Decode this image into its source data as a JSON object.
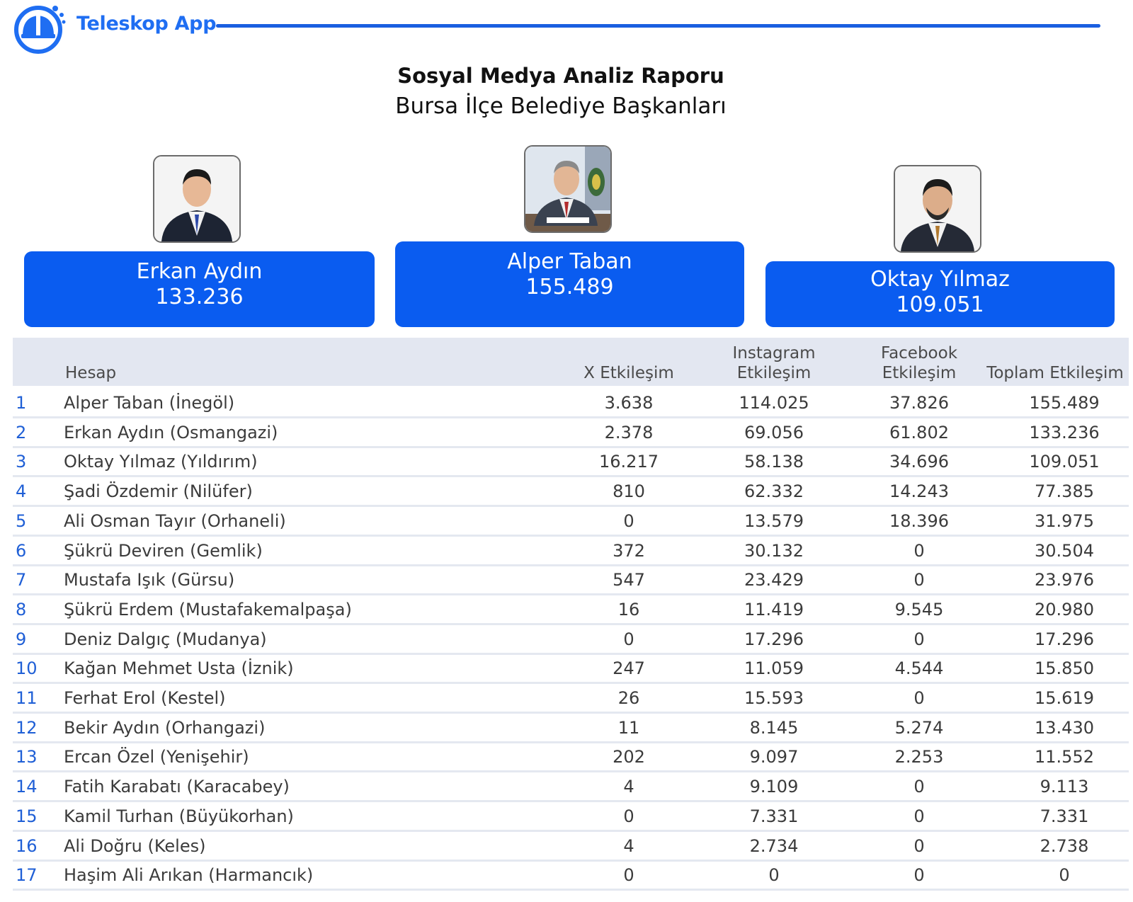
{
  "brand": {
    "name": "Teleskop App",
    "logo_icon": "telescope-dome-logo-icon",
    "color": "#1f6ef2"
  },
  "report": {
    "title": "Sosyal Medya Analiz Raporu",
    "subtitle": "Bursa İlçe Belediye Başkanları"
  },
  "podium": [
    {
      "name": "Erkan Aydın",
      "value": "133.236"
    },
    {
      "name": "Alper Taban",
      "value": "155.489"
    },
    {
      "name": "Oktay Yılmaz",
      "value": "109.051"
    }
  ],
  "table": {
    "headers": {
      "account": "Hesap",
      "x": "X Etkileşim",
      "instagram": [
        "Instagram",
        "Etkileşim"
      ],
      "facebook": [
        "Facebook",
        "Etkileşim"
      ],
      "total": "Toplam Etkileşim"
    },
    "rows": [
      {
        "rank": "1",
        "name": "Alper Taban (İnegöl)",
        "x": "3.638",
        "ig": "114.025",
        "fb": "37.826",
        "total": "155.489"
      },
      {
        "rank": "2",
        "name": "Erkan Aydın (Osmangazi)",
        "x": "2.378",
        "ig": "69.056",
        "fb": "61.802",
        "total": "133.236"
      },
      {
        "rank": "3",
        "name": "Oktay Yılmaz (Yıldırım)",
        "x": "16.217",
        "ig": "58.138",
        "fb": "34.696",
        "total": "109.051"
      },
      {
        "rank": "4",
        "name": "Şadi Özdemir (Nilüfer)",
        "x": "810",
        "ig": "62.332",
        "fb": "14.243",
        "total": "77.385"
      },
      {
        "rank": "5",
        "name": "Ali Osman Tayır (Orhaneli)",
        "x": "0",
        "ig": "13.579",
        "fb": "18.396",
        "total": "31.975"
      },
      {
        "rank": "6",
        "name": "Şükrü Deviren (Gemlik)",
        "x": "372",
        "ig": "30.132",
        "fb": "0",
        "total": "30.504"
      },
      {
        "rank": "7",
        "name": "Mustafa Işık (Gürsu)",
        "x": "547",
        "ig": "23.429",
        "fb": "0",
        "total": "23.976"
      },
      {
        "rank": "8",
        "name": "Şükrü Erdem (Mustafakemalpaşa)",
        "x": "16",
        "ig": "11.419",
        "fb": "9.545",
        "total": "20.980"
      },
      {
        "rank": "9",
        "name": "Deniz Dalgıç (Mudanya)",
        "x": "0",
        "ig": "17.296",
        "fb": "0",
        "total": "17.296"
      },
      {
        "rank": "10",
        "name": "Kağan Mehmet Usta (İznik)",
        "x": "247",
        "ig": "11.059",
        "fb": "4.544",
        "total": "15.850"
      },
      {
        "rank": "11",
        "name": "Ferhat Erol (Kestel)",
        "x": "26",
        "ig": "15.593",
        "fb": "0",
        "total": "15.619"
      },
      {
        "rank": "12",
        "name": "Bekir Aydın (Orhangazi)",
        "x": "11",
        "ig": "8.145",
        "fb": "5.274",
        "total": "13.430"
      },
      {
        "rank": "13",
        "name": "Ercan Özel (Yenişehir)",
        "x": "202",
        "ig": "9.097",
        "fb": "2.253",
        "total": "11.552"
      },
      {
        "rank": "14",
        "name": "Fatih Karabatı (Karacabey)",
        "x": "4",
        "ig": "9.109",
        "fb": "0",
        "total": "9.113"
      },
      {
        "rank": "15",
        "name": "Kamil Turhan (Büyükorhan)",
        "x": "0",
        "ig": "7.331",
        "fb": "0",
        "total": "7.331"
      },
      {
        "rank": "16",
        "name": "Ali Doğru (Keles)",
        "x": "4",
        "ig": "2.734",
        "fb": "0",
        "total": "2.738"
      },
      {
        "rank": "17",
        "name": "Haşim Ali Arıkan (Harmancık)",
        "x": "0",
        "ig": "0",
        "fb": "0",
        "total": "0"
      }
    ]
  }
}
